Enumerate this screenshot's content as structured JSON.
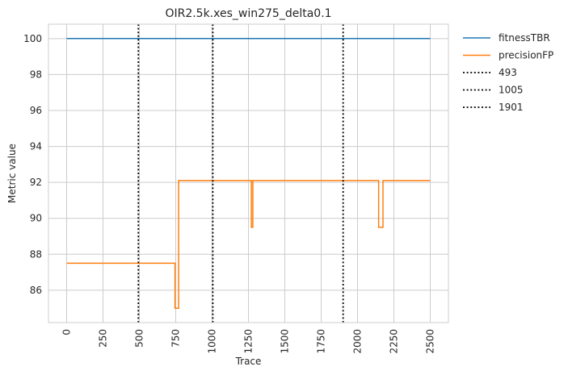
{
  "chart_data": {
    "type": "line",
    "title": "OIR2.5k.xes_win275_delta0.1",
    "xlabel": "Trace",
    "ylabel": "Metric value",
    "xlim": [
      -125,
      2625
    ],
    "ylim": [
      84.2,
      100.8
    ],
    "x_ticks": [
      0,
      250,
      500,
      750,
      1000,
      1250,
      1500,
      1750,
      2000,
      2250,
      2500
    ],
    "y_ticks": [
      86,
      88,
      90,
      92,
      94,
      96,
      98,
      100
    ],
    "grid": true,
    "legend_placement": "outside top-right",
    "series": [
      {
        "name": "fitnessTBR",
        "color": "#1f77b4",
        "style": "solid",
        "points": [
          [
            0,
            100
          ],
          [
            2500,
            100
          ]
        ]
      },
      {
        "name": "precisionFP",
        "color": "#ff7f0e",
        "style": "solid",
        "points": [
          [
            0,
            87.5
          ],
          [
            745,
            87.5
          ],
          [
            745,
            85.0
          ],
          [
            770,
            85.0
          ],
          [
            770,
            92.1
          ],
          [
            1270,
            92.1
          ],
          [
            1270,
            89.5
          ],
          [
            1280,
            89.5
          ],
          [
            1280,
            92.1
          ],
          [
            2145,
            92.1
          ],
          [
            2145,
            89.5
          ],
          [
            2175,
            89.5
          ],
          [
            2175,
            92.1
          ],
          [
            2500,
            92.1
          ]
        ]
      }
    ],
    "vlines": [
      {
        "name": "493",
        "x": 493,
        "color": "#000000",
        "style": "dotted"
      },
      {
        "name": "1005",
        "x": 1005,
        "color": "#000000",
        "style": "dotted"
      },
      {
        "name": "1901",
        "x": 1901,
        "color": "#000000",
        "style": "dotted"
      }
    ]
  }
}
